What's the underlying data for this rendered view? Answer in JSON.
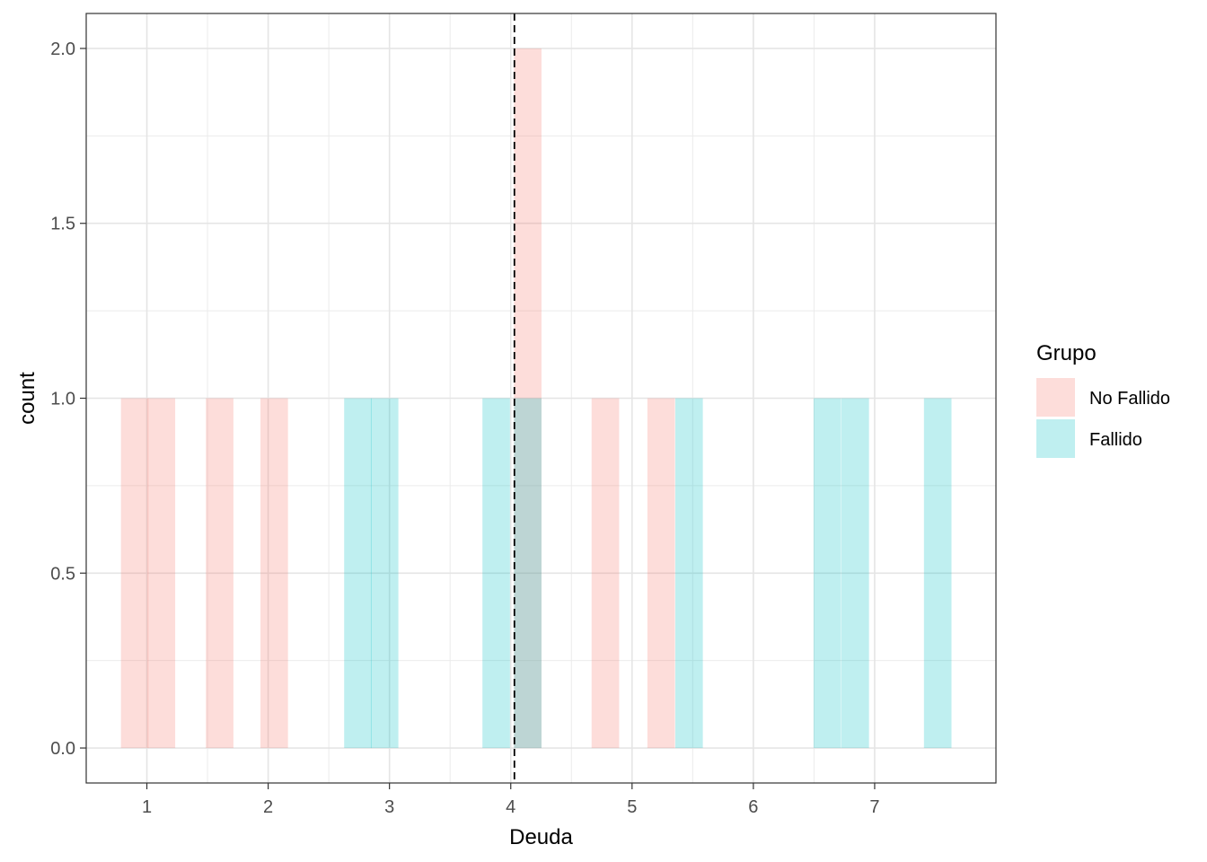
{
  "chart_data": {
    "type": "histogram",
    "xlabel": "Deuda",
    "ylabel": "count",
    "xlim": [
      0.5,
      8.0
    ],
    "ylim": [
      -0.1,
      2.1
    ],
    "x_ticks": [
      1,
      2,
      3,
      4,
      5,
      6,
      7
    ],
    "y_ticks": [
      0.0,
      0.5,
      1.0,
      1.5,
      2.0
    ],
    "x_tick_labels": [
      "1",
      "2",
      "3",
      "4",
      "5",
      "6",
      "7"
    ],
    "y_tick_labels": [
      "0.0",
      "0.5",
      "1.0",
      "1.5",
      "2.0"
    ],
    "grid": true,
    "bin_width": 0.227,
    "reference_line": {
      "x": 4.03,
      "style": "dashed",
      "color": "#000000"
    },
    "legend": {
      "title": "Grupo",
      "placement": "right"
    },
    "series": [
      {
        "name": "No Fallido",
        "color": "#F8766D",
        "bars": [
          {
            "x": 0.9,
            "count": 1
          },
          {
            "x": 1.12,
            "count": 1
          },
          {
            "x": 1.6,
            "count": 1
          },
          {
            "x": 2.05,
            "count": 1
          },
          {
            "x": 4.14,
            "count": 2
          },
          {
            "x": 4.78,
            "count": 1
          },
          {
            "x": 5.24,
            "count": 1
          }
        ]
      },
      {
        "name": "Fallido",
        "color": "#00BFC4",
        "bars": [
          {
            "x": 2.74,
            "count": 1
          },
          {
            "x": 2.96,
            "count": 1
          },
          {
            "x": 3.88,
            "count": 1
          },
          {
            "x": 4.14,
            "count": 1
          },
          {
            "x": 5.47,
            "count": 1
          },
          {
            "x": 6.61,
            "count": 1
          },
          {
            "x": 6.84,
            "count": 1
          },
          {
            "x": 7.52,
            "count": 1
          }
        ]
      }
    ]
  }
}
